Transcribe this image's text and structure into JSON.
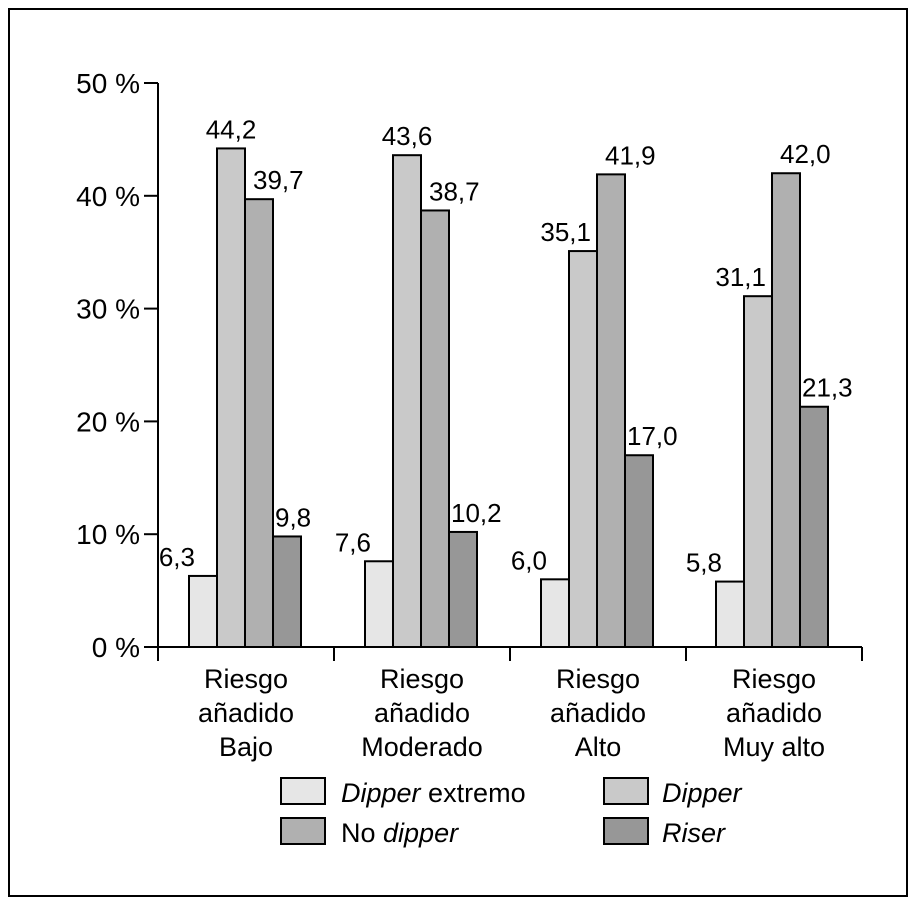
{
  "chart_data": {
    "type": "bar",
    "categories": [
      [
        "Riesgo",
        "añadido",
        "Bajo"
      ],
      [
        "Riesgo",
        "añadido",
        "Moderado"
      ],
      [
        "Riesgo",
        "añadido",
        "Alto"
      ],
      [
        "Riesgo",
        "añadido",
        "Muy alto"
      ]
    ],
    "series": [
      {
        "name": "Dipper extremo",
        "legend": {
          "italic": "Dipper",
          "plain": " extremo"
        },
        "color": "#e6e6e6",
        "values": [
          6.3,
          7.6,
          6.0,
          5.8
        ],
        "labels": [
          "6,3",
          "7,6",
          "6,0",
          "5,8"
        ]
      },
      {
        "name": "Dipper",
        "legend": {
          "italic": "Dipper",
          "plain": ""
        },
        "color": "#c9c9c9",
        "values": [
          44.2,
          43.6,
          35.1,
          31.1
        ],
        "labels": [
          "44,2",
          "43,6",
          "35,1",
          "31,1"
        ]
      },
      {
        "name": "No dipper",
        "legend": {
          "plain_first": "No ",
          "italic": "dipper"
        },
        "color": "#b0b0b0",
        "values": [
          39.7,
          38.7,
          41.9,
          42.0
        ],
        "labels": [
          "39,7",
          "38,7",
          "41,9",
          "42,0"
        ]
      },
      {
        "name": "Riser",
        "legend": {
          "italic": "Riser",
          "plain": ""
        },
        "color": "#979797",
        "values": [
          9.8,
          10.2,
          17.0,
          21.3
        ],
        "labels": [
          "9,8",
          "10,2",
          "17,0",
          "21,3"
        ]
      }
    ],
    "yticks": [
      "0 %",
      "10 %",
      "20 %",
      "30 %",
      "40 %",
      "50 %"
    ],
    "ylim": [
      0,
      50
    ],
    "grid": false,
    "legend_position": "bottom"
  }
}
